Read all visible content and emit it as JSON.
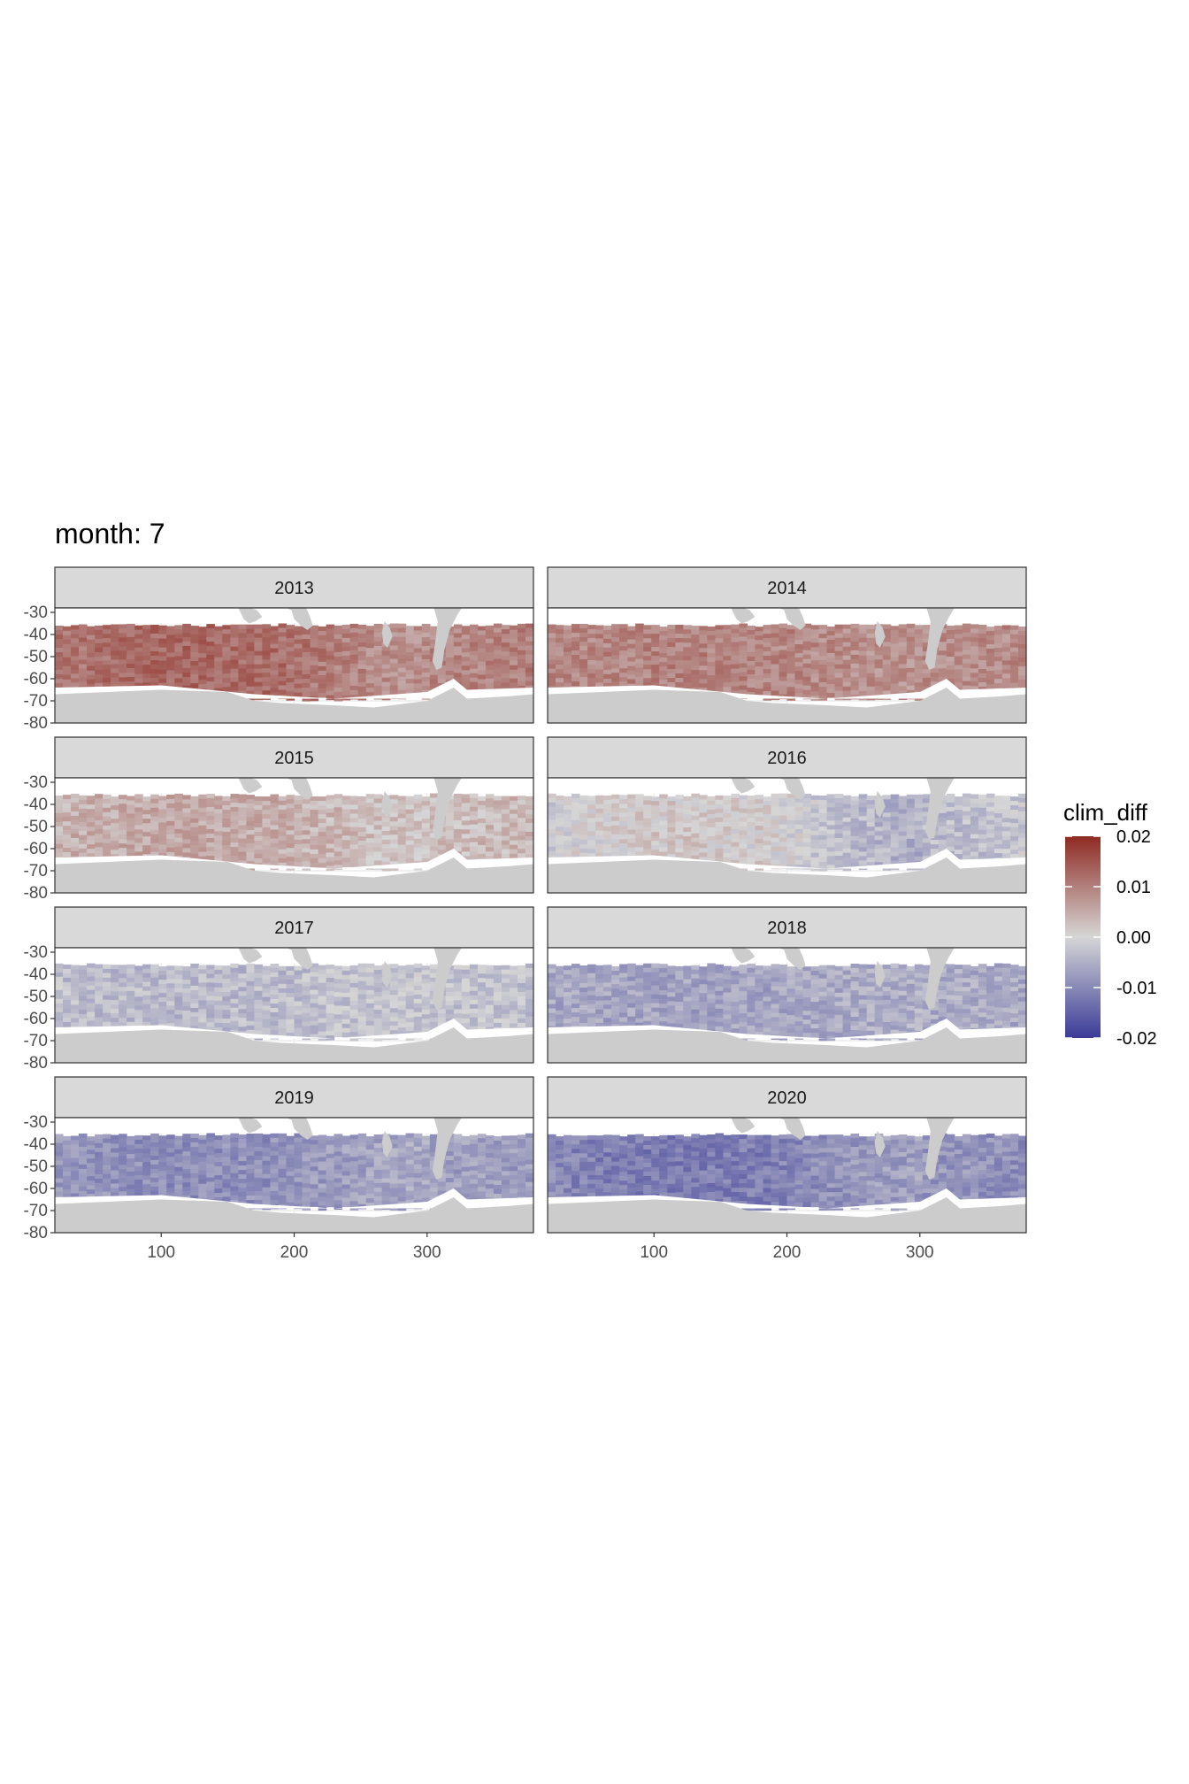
{
  "chart_data": {
    "type": "heatmap",
    "title": "month: 7",
    "xlabel": "",
    "ylabel": "",
    "x_ticks": [
      100,
      200,
      300
    ],
    "y_ticks": [
      -30,
      -40,
      -50,
      -60,
      -70,
      -80
    ],
    "xlim": [
      20,
      380
    ],
    "ylim": [
      -80,
      -28
    ],
    "legend": {
      "title": "clim_diff",
      "position": "right",
      "labels": [
        "0.02",
        "0.01",
        "0.00",
        "-0.01",
        "-0.02"
      ],
      "values": [
        0.02,
        0.01,
        0.0,
        -0.01,
        -0.02
      ],
      "colors": {
        "high": "#8e2a22",
        "mid": "#d6d6d6",
        "low": "#3b3b98"
      }
    },
    "colors": {
      "land": "#cccccc",
      "strip": "#d9d9d9",
      "ice": "#ffffff",
      "grid": "#ebebeb"
    },
    "panels": [
      {
        "label": "2013",
        "anomaly": 0.011,
        "gradient": 0.003
      },
      {
        "label": "2014",
        "anomaly": 0.009,
        "gradient": 0.001
      },
      {
        "label": "2015",
        "anomaly": 0.004,
        "gradient": 0.002
      },
      {
        "label": "2016",
        "anomaly": -0.001,
        "gradient": 0.004
      },
      {
        "label": "2017",
        "anomaly": -0.003,
        "gradient": -0.001
      },
      {
        "label": "2018",
        "anomaly": -0.006,
        "gradient": -0.001
      },
      {
        "label": "2019",
        "anomaly": -0.008,
        "gradient": -0.002
      },
      {
        "label": "2020",
        "anomaly": -0.01,
        "gradient": -0.003
      }
    ]
  }
}
